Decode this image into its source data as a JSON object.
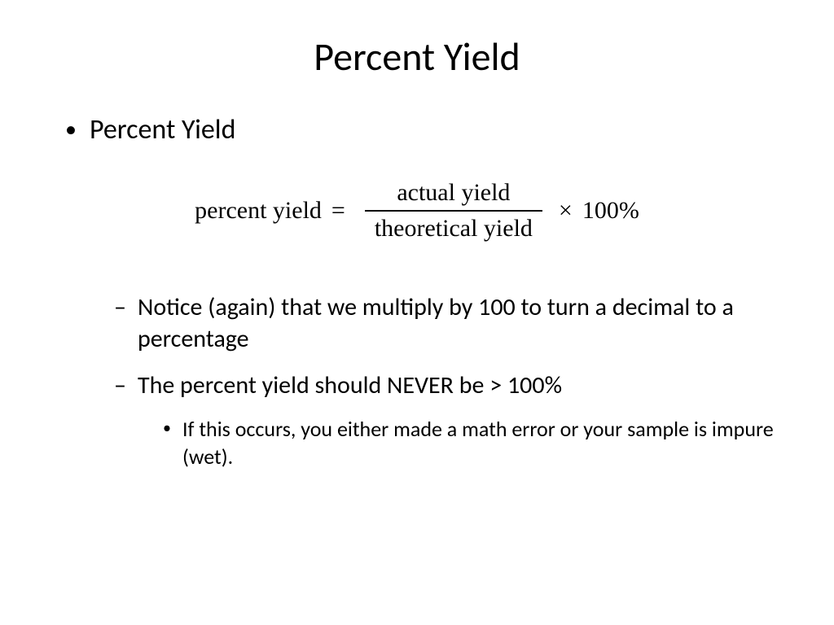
{
  "slide": {
    "title": "Percent Yield",
    "bullet1": "Percent Yield",
    "formula": {
      "lhs": "percent yield",
      "eq": "=",
      "numerator": "actual yield",
      "denominator": "theoretical yield",
      "times": "×",
      "rhs": "100%"
    },
    "bullet2a": "Notice (again) that we multiply by 100 to turn a decimal to a percentage",
    "bullet2b": "The percent yield should NEVER be > 100%",
    "bullet3a": "If this occurs, you either made a math error or your sample is impure (wet)."
  },
  "styling": {
    "background_color": "#ffffff",
    "text_color": "#000000",
    "title_fontsize": 48,
    "bullet1_fontsize": 34,
    "bullet2_fontsize": 30,
    "bullet3_fontsize": 26,
    "formula_fontsize": 30,
    "formula_font": "Times New Roman",
    "body_font": "Calibri"
  }
}
